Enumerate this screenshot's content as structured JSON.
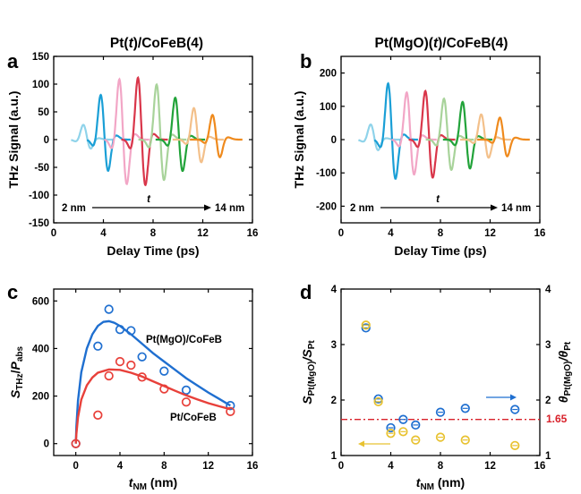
{
  "colors": {
    "trace_colors": [
      "#8fd3ea",
      "#1a9fd6",
      "#f2a6c6",
      "#d9364a",
      "#a8d39a",
      "#22a33a",
      "#f3c08a",
      "#ef8a1d"
    ],
    "blue": "#1f6fd0",
    "red": "#e8403a",
    "yellow": "#e8c230",
    "ratio_line": "#d8212a"
  },
  "chart_data": [
    {
      "type": "line",
      "panel_label": "a",
      "title": "Pt(t)/CoFeB(4)",
      "xlabel": "Delay Time (ps)",
      "ylabel": "THz Signal (a.u.)",
      "xlim": [
        0,
        16
      ],
      "ylim": [
        -150,
        150
      ],
      "xticks": [
        "0",
        "4",
        "8",
        "12",
        "16"
      ],
      "yticks": [
        "150",
        "100",
        "50",
        "0",
        "-50",
        "-100",
        "-150"
      ],
      "annotation": {
        "start": "2 nm",
        "middle": "t",
        "end": "14 nm"
      },
      "series": [
        {
          "peak_time": 2.4,
          "pos_amp": 28,
          "neg_amp": -18
        },
        {
          "peak_time": 3.8,
          "pos_amp": 85,
          "neg_amp": -62
        },
        {
          "peak_time": 5.3,
          "pos_amp": 115,
          "neg_amp": -88
        },
        {
          "peak_time": 6.8,
          "pos_amp": 118,
          "neg_amp": -90
        },
        {
          "peak_time": 8.3,
          "pos_amp": 105,
          "neg_amp": -80
        },
        {
          "peak_time": 9.8,
          "pos_amp": 80,
          "neg_amp": -62
        },
        {
          "peak_time": 11.3,
          "pos_amp": 60,
          "neg_amp": -45
        },
        {
          "peak_time": 12.8,
          "pos_amp": 47,
          "neg_amp": -35
        }
      ]
    },
    {
      "type": "line",
      "panel_label": "b",
      "title": "Pt(MgO)(t)/CoFeB(4)",
      "xlabel": "Delay Time (ps)",
      "ylabel": "THz Signal (a.u.)",
      "xlim": [
        0,
        16
      ],
      "ylim": [
        -250,
        250
      ],
      "xticks": [
        "0",
        "4",
        "8",
        "12",
        "16"
      ],
      "yticks": [
        "200",
        "100",
        "0",
        "-100",
        "-200"
      ],
      "annotation": {
        "start": "2 nm",
        "middle": "t",
        "end": "14 nm"
      },
      "series": [
        {
          "peak_time": 2.4,
          "pos_amp": 48,
          "neg_amp": -35
        },
        {
          "peak_time": 3.8,
          "pos_amp": 178,
          "neg_amp": -130
        },
        {
          "peak_time": 5.3,
          "pos_amp": 150,
          "neg_amp": -115
        },
        {
          "peak_time": 6.8,
          "pos_amp": 155,
          "neg_amp": -125
        },
        {
          "peak_time": 8.3,
          "pos_amp": 130,
          "neg_amp": -100
        },
        {
          "peak_time": 9.8,
          "pos_amp": 120,
          "neg_amp": -95
        },
        {
          "peak_time": 11.3,
          "pos_amp": 80,
          "neg_amp": -60
        },
        {
          "peak_time": 12.8,
          "pos_amp": 70,
          "neg_amp": -55
        }
      ]
    },
    {
      "type": "scatter",
      "panel_label": "c",
      "xlabel": {
        "base": "t",
        "sub": "NM",
        "unit": " (nm)"
      },
      "ylabel": {
        "s": "S",
        "s_sub": "THz",
        "p": "P",
        "p_sub": "abs"
      },
      "xlim": [
        -2,
        16
      ],
      "ylim": [
        -50,
        650
      ],
      "xticks": [
        "0",
        "4",
        "8",
        "12",
        "16"
      ],
      "yticks": [
        "600",
        "400",
        "200",
        "0"
      ],
      "series": [
        {
          "name": "Pt(MgO)/CoFeB",
          "color": "blue",
          "x": [
            0,
            2,
            3,
            4,
            5,
            6,
            8,
            10,
            14
          ],
          "y": [
            0,
            410,
            565,
            480,
            475,
            365,
            305,
            225,
            160
          ],
          "fit_x": [
            0.05,
            0.2,
            0.5,
            1,
            1.5,
            2,
            2.5,
            3,
            3.5,
            4,
            5,
            6,
            7,
            8,
            9,
            10,
            11,
            12,
            13,
            14
          ],
          "fit_y": [
            70,
            180,
            300,
            400,
            460,
            495,
            512,
            515,
            508,
            495,
            460,
            420,
            380,
            345,
            310,
            275,
            245,
            215,
            188,
            160
          ]
        },
        {
          "name": "Pt/CoFeB",
          "color": "red",
          "x": [
            0,
            2,
            3,
            4,
            5,
            6,
            8,
            10,
            14
          ],
          "y": [
            0,
            120,
            285,
            345,
            330,
            280,
            230,
            175,
            135
          ],
          "fit_x": [
            0.05,
            0.2,
            0.5,
            1,
            1.5,
            2,
            3,
            4,
            5,
            6,
            7,
            8,
            9,
            10,
            11,
            12,
            13,
            14
          ],
          "fit_y": [
            40,
            110,
            185,
            245,
            278,
            298,
            312,
            310,
            298,
            282,
            262,
            242,
            222,
            203,
            186,
            170,
            157,
            145
          ]
        }
      ]
    },
    {
      "type": "scatter",
      "panel_label": "d",
      "xlabel": {
        "base": "t",
        "sub": "NM",
        "unit": " (nm)"
      },
      "ylabel_left": {
        "base": "S",
        "sub1": "Pt(MgO)",
        "mid": "/S",
        "sub2": "Pt"
      },
      "ylabel_right": {
        "base": "θ",
        "sub1": "Pt(MgO)",
        "mid": "/θ",
        "sub2": "Pt"
      },
      "xlim": [
        0,
        16
      ],
      "ylim": [
        1,
        4
      ],
      "xticks": [
        "0",
        "4",
        "8",
        "12",
        "16"
      ],
      "yticks": [
        "4",
        "3",
        "2",
        "1"
      ],
      "reference_line": {
        "y": 1.65,
        "label": "1.65"
      },
      "series": [
        {
          "axis": "right",
          "color": "blue",
          "x": [
            2,
            3,
            4,
            5,
            6,
            8,
            10,
            14
          ],
          "y": [
            3.3,
            2.02,
            1.5,
            1.65,
            1.55,
            1.78,
            1.85,
            1.83
          ]
        },
        {
          "axis": "left",
          "color": "yellow",
          "x": [
            2,
            3,
            4,
            5,
            6,
            8,
            10,
            14
          ],
          "y": [
            3.35,
            1.97,
            1.4,
            1.43,
            1.28,
            1.33,
            1.28,
            1.18
          ]
        }
      ]
    }
  ]
}
